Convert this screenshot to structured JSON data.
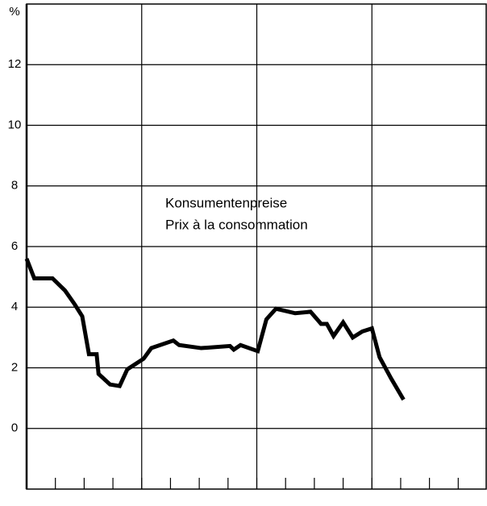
{
  "chart_data": {
    "type": "line",
    "y_label": "%",
    "annotations": [
      "Konsumentenpreise",
      "Prix à la consommation"
    ],
    "xlim": [
      0,
      48
    ],
    "xticks": [
      3,
      6,
      9,
      12,
      15,
      18,
      21,
      24,
      27,
      30,
      33,
      36,
      39,
      42,
      45
    ],
    "xgrid": [
      12,
      24,
      36
    ],
    "ylim": [
      -2,
      14
    ],
    "yticks": [
      0,
      2,
      4,
      6,
      8,
      10,
      12
    ],
    "grid": true,
    "series": [
      {
        "color": "#000000",
        "x": [
          0,
          0.8,
          2.7,
          4,
          5,
          5.8,
          6.5,
          7.3,
          7.5,
          8.7,
          9.7,
          10.5,
          12.2,
          13,
          15.3,
          15.9,
          18.2,
          21.2,
          21.6,
          22.3,
          24.1,
          25,
          26,
          28,
          29.6,
          30.7,
          31.3,
          32,
          33,
          34,
          35,
          36,
          36.8,
          38,
          39.3
        ],
        "values": [
          5.6,
          4.95,
          4.95,
          4.55,
          4.1,
          3.7,
          2.45,
          2.45,
          1.8,
          1.45,
          1.4,
          1.95,
          2.3,
          2.65,
          2.9,
          2.75,
          2.65,
          2.72,
          2.6,
          2.75,
          2.55,
          3.6,
          3.95,
          3.8,
          3.85,
          3.45,
          3.45,
          3.05,
          3.5,
          3.0,
          3.2,
          3.3,
          2.35,
          1.65,
          0.95
        ]
      }
    ]
  }
}
